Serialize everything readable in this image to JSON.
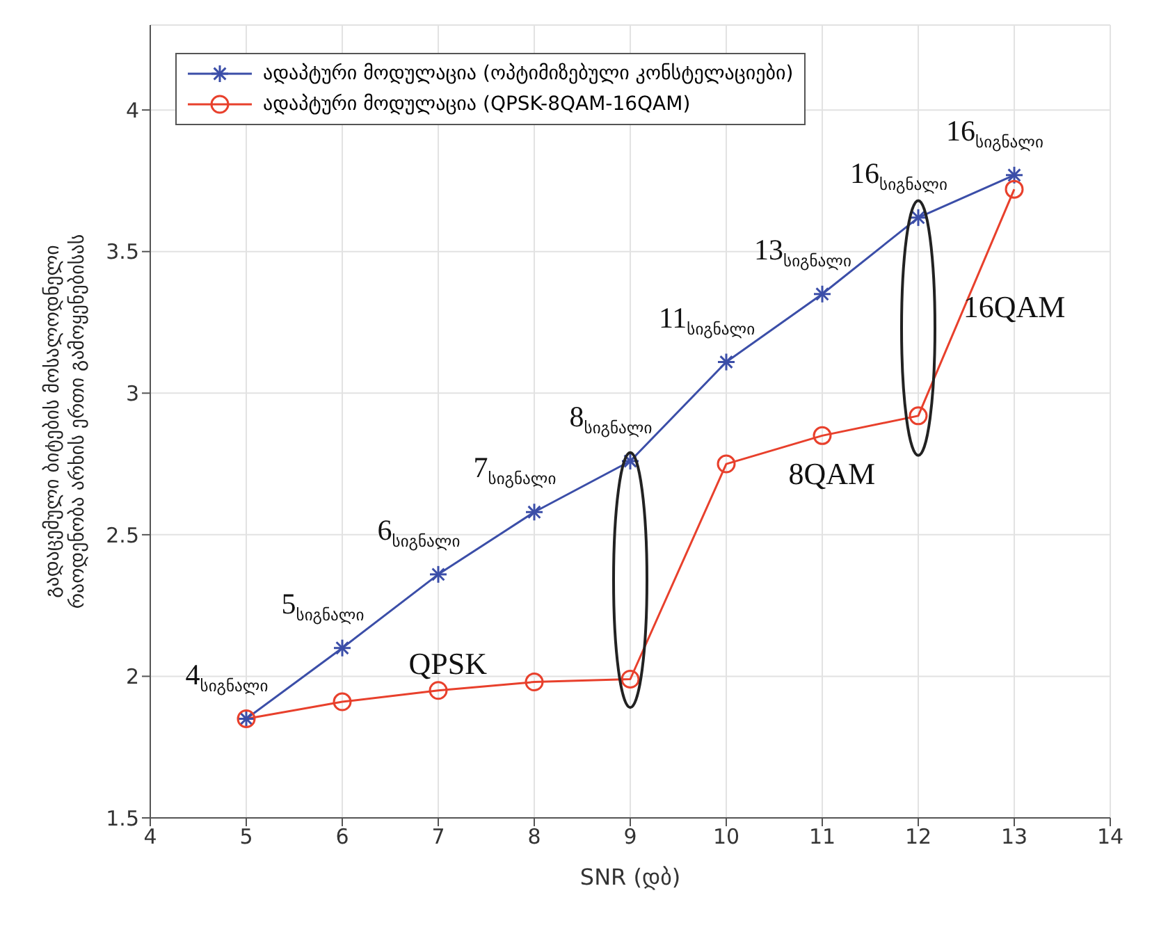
{
  "chart_data": {
    "type": "line",
    "xlabel": "SNR (დბ)",
    "ylabel": "გადაცემული ბიტების მოსალოდნელი რაოდენობა არხის ერთი გამოყენებისას",
    "x": [
      5,
      6,
      7,
      8,
      9,
      10,
      11,
      12,
      13
    ],
    "series": [
      {
        "name": "ადაპტური მოდულაცია (ოპტიმიზებული კონსტელაციები)",
        "color": "#3b4ea8",
        "marker": "cross",
        "values": [
          1.85,
          2.1,
          2.36,
          2.58,
          2.76,
          3.11,
          3.35,
          3.62,
          3.77
        ]
      },
      {
        "name": "ადაპტური მოდულაცია (QPSK-8QAM-16QAM)",
        "color": "#e8402c",
        "marker": "circle",
        "values": [
          1.85,
          1.91,
          1.95,
          1.98,
          1.99,
          2.75,
          2.85,
          2.92,
          3.72
        ]
      }
    ],
    "xlim": [
      4,
      14
    ],
    "xticks": [
      4,
      5,
      6,
      7,
      8,
      9,
      10,
      11,
      12,
      13,
      14
    ],
    "ylim": [
      1.5,
      4.3
    ],
    "yticks": [
      1.5,
      2,
      2.5,
      3,
      3.5,
      4
    ],
    "grid": true,
    "legend": "top left",
    "annotations": [
      {
        "text": "4$_{სიგნალი}$",
        "x": 5,
        "y": 1.85
      },
      {
        "text": "5$_{სიგნალი}$",
        "x": 6,
        "y": 2.1
      },
      {
        "text": "6$_{სიგნალი}$",
        "x": 7,
        "y": 2.36
      },
      {
        "text": "7$_{სიგნალი}$",
        "x": 8,
        "y": 2.58
      },
      {
        "text": "8$_{სიგნალი}$",
        "x": 9,
        "y": 2.76
      },
      {
        "text": "11$_{სიგნალი}$",
        "x": 10,
        "y": 3.11
      },
      {
        "text": "13$_{სიგნალი}$",
        "x": 11,
        "y": 3.35
      },
      {
        "text": "16$_{სიგნალი}$",
        "x": 12,
        "y": 3.62
      },
      {
        "text": "16$_{სიგნალი}$",
        "x": 13,
        "y": 3.77
      },
      "QPSK",
      "8QAM",
      "16QAM"
    ]
  }
}
